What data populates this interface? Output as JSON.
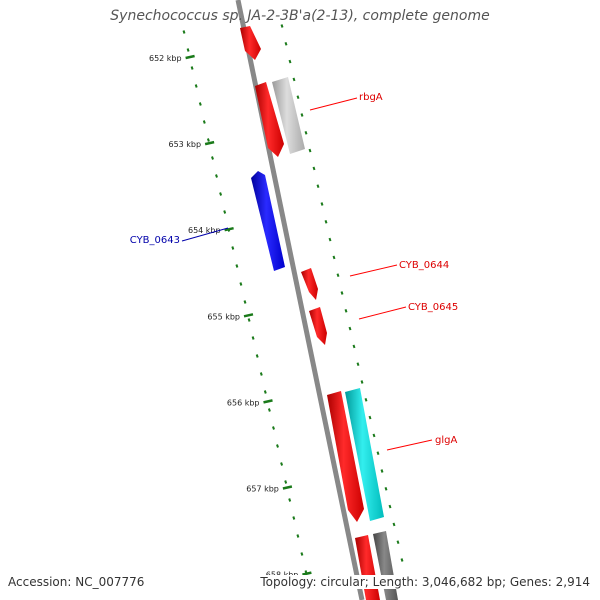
{
  "title": "Synechococcus sp. JA-2-3B'a(2-13), complete genome",
  "footer": {
    "accession": "Accession: NC_007776",
    "summary": "Topology: circular; Length: 3,046,682 bp; Genes: 2,914"
  },
  "colors": {
    "backbone": "#888888",
    "tick": "#1a7a1a",
    "forward_gene": "#ff0000",
    "reverse_gene": "#0000ee",
    "gray_feature": "#bbbbbb",
    "cyan_feature": "#00cccc",
    "dark_gray_feature": "#777777",
    "red_label": "#dd0000",
    "blue_label": "#0000aa"
  },
  "scale_ticks": [
    {
      "label": "652 kbp"
    },
    {
      "label": "653 kbp"
    },
    {
      "label": "654 kbp"
    },
    {
      "label": "655 kbp"
    },
    {
      "label": "656 kbp"
    },
    {
      "label": "657 kbp"
    },
    {
      "label": "658 kbp"
    }
  ],
  "genes": [
    {
      "name": "rbgA",
      "strand": "+",
      "color": "red"
    },
    {
      "name": "CYB_0643",
      "strand": "-",
      "color": "blue"
    },
    {
      "name": "CYB_0644",
      "strand": "+",
      "color": "red"
    },
    {
      "name": "CYB_0645",
      "strand": "+",
      "color": "red"
    },
    {
      "name": "glgA",
      "strand": "+",
      "color": "red"
    }
  ]
}
